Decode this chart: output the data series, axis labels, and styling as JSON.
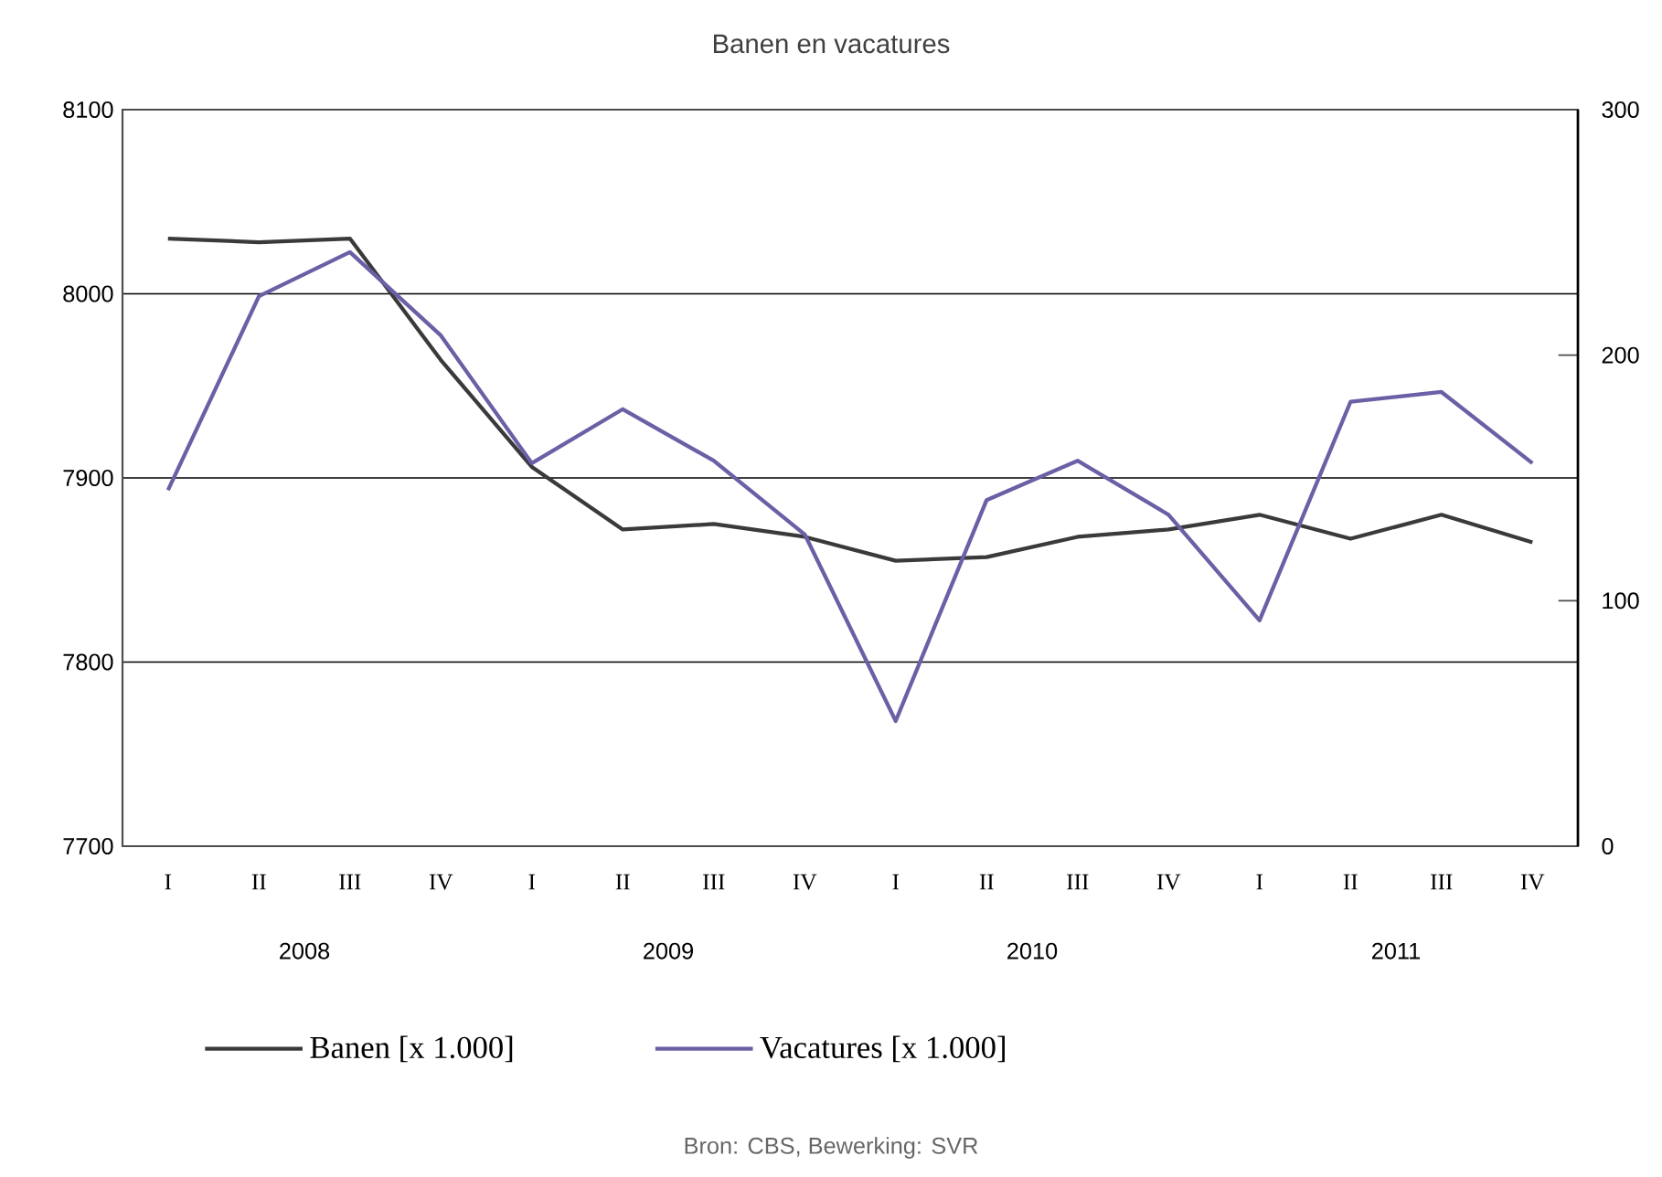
{
  "chart_data": {
    "type": "line",
    "title": "Banen en vacatures",
    "categories": [
      "I",
      "II",
      "III",
      "IV",
      "I",
      "II",
      "III",
      "IV",
      "I",
      "II",
      "III",
      "IV",
      "I",
      "II",
      "III",
      "IV"
    ],
    "series": [
      {
        "name": "Banen [x 1.000]",
        "color": "#3a3a3a",
        "values": [
          8030,
          8028,
          8030,
          7964,
          7906,
          7872,
          7875,
          7868,
          7855,
          7857,
          7868,
          7872,
          7880,
          7867,
          7880,
          7865
        ]
      },
      {
        "name": "Vacatures [x 1.000]",
        "color": "#6b5fa5",
        "axis": "y2",
        "values": [
          145,
          224,
          242,
          208,
          156,
          178,
          157,
          127,
          51,
          141,
          157,
          135,
          92,
          181,
          185,
          156
        ]
      }
    ],
    "ylim": [
      7700,
      8100
    ],
    "yticks": [
      7700,
      7800,
      7900,
      8000,
      8100
    ],
    "y2lim": [
      0,
      300
    ],
    "y2ticks": [
      0,
      100,
      200,
      300
    ],
    "grid": "y",
    "legend": "bottom",
    "annotations": [
      "2008",
      "2009",
      "2010",
      "2011",
      "Bron: CBS, Bewerking: SVR"
    ]
  }
}
